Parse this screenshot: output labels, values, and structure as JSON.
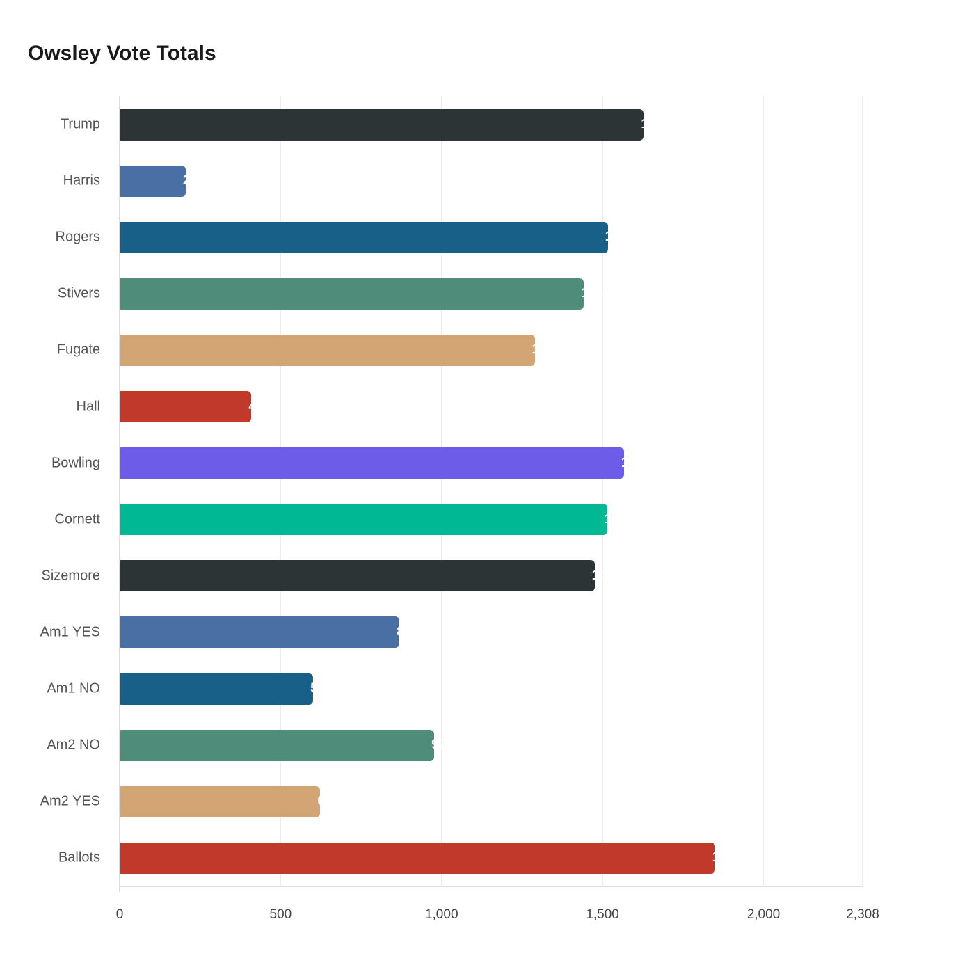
{
  "chart_data": {
    "type": "bar",
    "orientation": "horizontal",
    "title": "Owsley Vote Totals",
    "xlabel": "",
    "ylabel": "",
    "xlim": [
      0,
      2308
    ],
    "x_ticks": [
      "0",
      "500",
      "1,000",
      "1,500",
      "2,000",
      "2,308"
    ],
    "x_tick_values": [
      0,
      500,
      1000,
      1500,
      2000,
      2308
    ],
    "grid": true,
    "legend": null,
    "categories": [
      "Trump",
      "Harris",
      "Rogers",
      "Stivers",
      "Fugate",
      "Hall",
      "Bowling",
      "Cornett",
      "Sizemore",
      "Am1 YES",
      "Am1 NO",
      "Am2 NO",
      "Am2 YES",
      "Ballots"
    ],
    "values": [
      1626,
      203,
      1514,
      1440,
      1287,
      407,
      1564,
      1512,
      1473,
      867,
      599,
      975,
      621,
      1847
    ],
    "colors": [
      "#2d3436",
      "#4a6fa5",
      "#186088",
      "#4f8d7a",
      "#d4a574",
      "#c0392b",
      "#6c5ce7",
      "#00b894",
      "#2d3436",
      "#4a6fa5",
      "#186088",
      "#4f8d7a",
      "#d4a574",
      "#c0392b"
    ]
  },
  "labels": {
    "title": "Owsley Vote Totals"
  }
}
